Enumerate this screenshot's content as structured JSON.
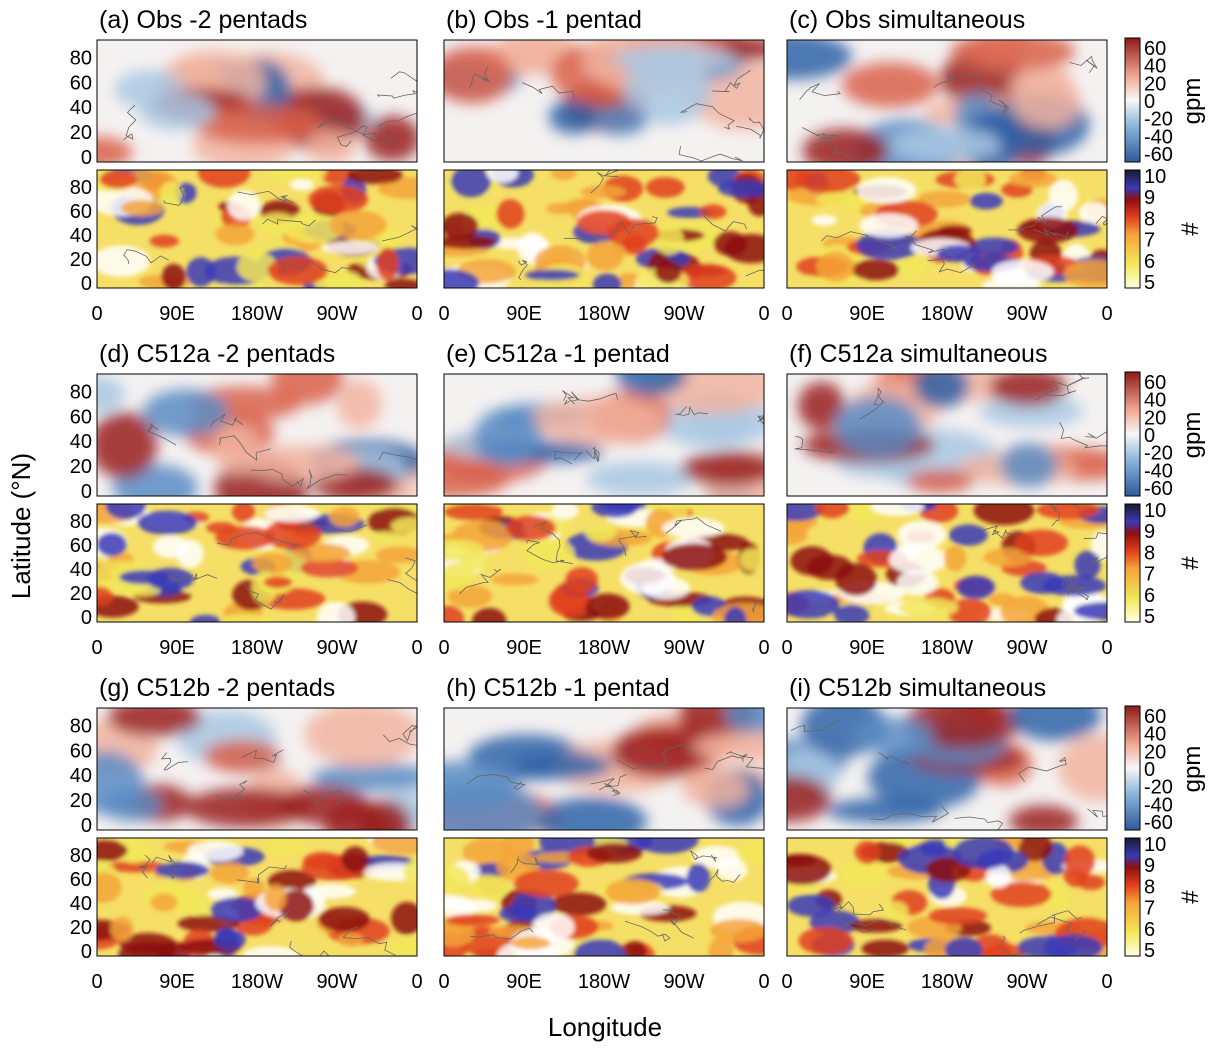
{
  "panels": [
    {
      "title": "(a) Obs -2 pentads"
    },
    {
      "title": "(b) Obs -1 pentad"
    },
    {
      "title": "(c) Obs simultaneous"
    },
    {
      "title": "(d) C512a -2 pentads"
    },
    {
      "title": "(e) C512a -1 pentad"
    },
    {
      "title": "(f) C512a simultaneous"
    },
    {
      "title": "(g) C512b -2 pentads"
    },
    {
      "title": "(h) C512b -1 pentad"
    },
    {
      "title": "(i) C512b simultaneous"
    }
  ],
  "x_ticks": [
    "0",
    "90E",
    "180W",
    "90W",
    "0"
  ],
  "map_y_ticks": [
    0,
    20,
    40,
    60,
    80
  ],
  "anomaly_colorbar": {
    "ticks": [
      60,
      40,
      20,
      0,
      -20,
      -40,
      -60
    ],
    "label": "gpm"
  },
  "count_colorbar": {
    "ticks": [
      10,
      9,
      8,
      7,
      6,
      5
    ],
    "label": "#"
  },
  "y_axis_label": "Latitude (°N)",
  "x_axis_label": "Longitude"
}
